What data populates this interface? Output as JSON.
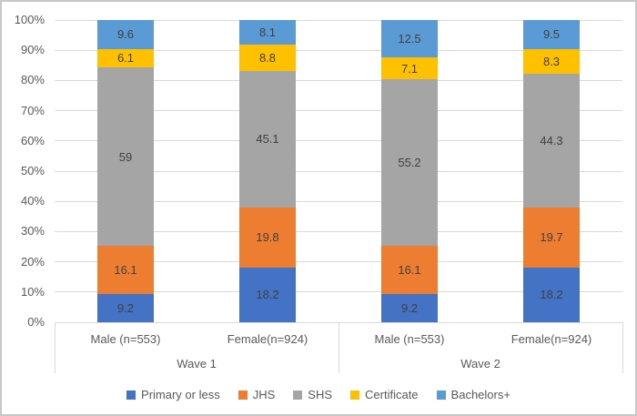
{
  "chart_data": {
    "type": "bar",
    "subtype": "100-percent-stacked-column",
    "title": "",
    "xlabel": "",
    "ylabel": "",
    "y_axis": {
      "min": 0,
      "max": 100,
      "tick_step": 10,
      "ticks": [
        "100%",
        "90%",
        "80%",
        "70%",
        "60%",
        "50%",
        "40%",
        "30%",
        "20%",
        "10%",
        "0%"
      ],
      "grid": true
    },
    "groups": [
      {
        "label": "Wave 1",
        "categories": [
          "Male (n=553)",
          "Female(n=924)"
        ]
      },
      {
        "label": "Wave 2",
        "categories": [
          "Male (n=553)",
          "Female(n=924)"
        ]
      }
    ],
    "categories_flat": [
      "Male (n=553)",
      "Female(n=924)",
      "Male (n=553)",
      "Female(n=924)"
    ],
    "series": [
      {
        "name": "Primary or less",
        "color": "#4472C4",
        "values": [
          9.2,
          18.2,
          9.2,
          18.2
        ]
      },
      {
        "name": "JHS",
        "color": "#ED7D31",
        "values": [
          16.1,
          19.8,
          16.1,
          19.7
        ]
      },
      {
        "name": "SHS",
        "color": "#A5A5A5",
        "values": [
          59,
          45.1,
          55.2,
          44.3
        ]
      },
      {
        "name": "Certificate",
        "color": "#FFC000",
        "values": [
          6.1,
          8.8,
          7.1,
          8.3
        ]
      },
      {
        "name": "Bachelors+",
        "color": "#5B9BD5",
        "values": [
          9.6,
          8.1,
          12.5,
          9.5
        ]
      }
    ],
    "data_labels_shown": true,
    "legend": {
      "position": "bottom",
      "entries": [
        "Primary or less",
        "JHS",
        "SHS",
        "Certificate",
        "Bachelors+"
      ]
    }
  },
  "colors": {
    "gridline": "#d9d9d9",
    "axis_line": "#d9d9d9",
    "tick_text": "#595959",
    "data_label_text": "#404040",
    "frame_border": "#c8c8c8",
    "background": "#ffffff"
  }
}
